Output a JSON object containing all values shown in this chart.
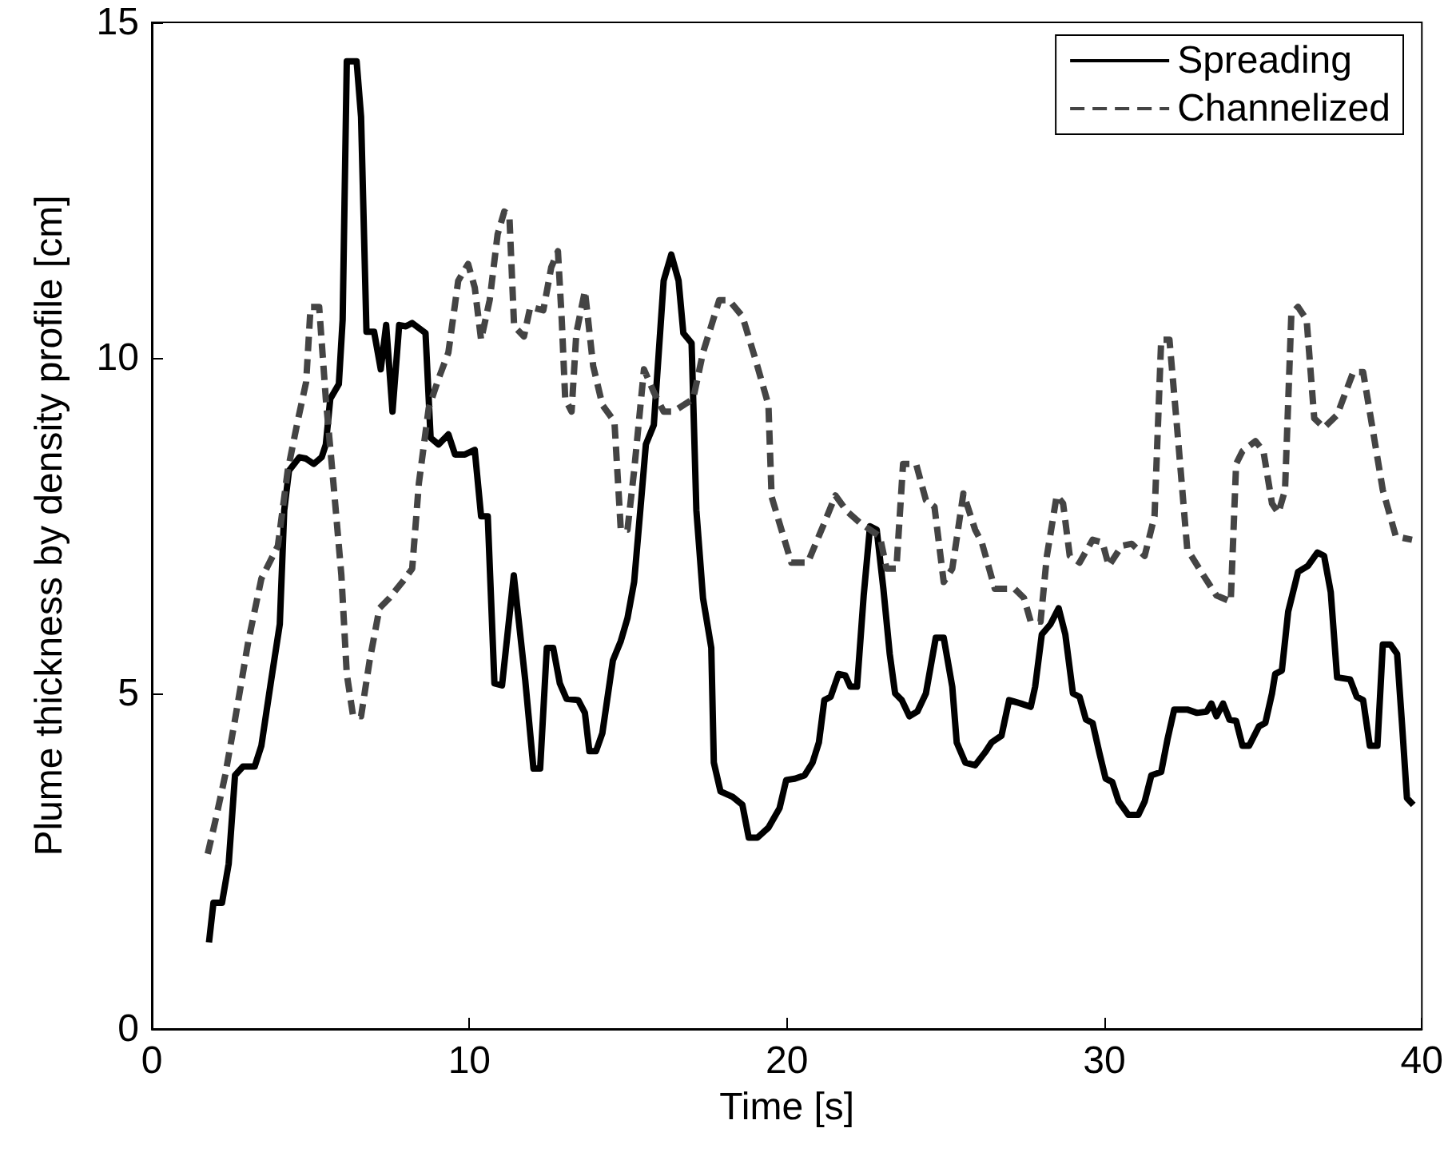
{
  "chart_data": {
    "type": "line",
    "xlabel": "Time [s]",
    "ylabel": "Plume thickness by density profile [cm]",
    "xlim": [
      0,
      40
    ],
    "xticks": [
      0,
      10,
      20,
      30,
      40
    ],
    "ylim": [
      0,
      15
    ],
    "yticks": [
      0,
      5,
      10,
      15
    ],
    "grid": false,
    "legend": "top right",
    "marker": "none",
    "series": [
      {
        "name": "Spreading",
        "color": "#000000",
        "line_style": "solid",
        "x": [
          1.8,
          1.94,
          2.21,
          2.42,
          2.62,
          2.87,
          3.24,
          3.45,
          3.76,
          4.03,
          4.17,
          4.32,
          4.65,
          4.85,
          5.1,
          5.35,
          5.48,
          5.62,
          5.89,
          6.01,
          6.14,
          6.45,
          6.59,
          6.76,
          7.0,
          7.21,
          7.38,
          7.58,
          7.79,
          8.0,
          8.2,
          8.62,
          8.78,
          9.03,
          9.34,
          9.55,
          9.86,
          10.17,
          10.37,
          10.58,
          10.79,
          11.03,
          11.4,
          11.76,
          12.02,
          12.23,
          12.44,
          12.64,
          12.85,
          13.06,
          13.43,
          13.64,
          13.78,
          13.99,
          14.19,
          14.52,
          14.77,
          14.98,
          15.19,
          15.35,
          15.56,
          15.81,
          16.12,
          16.36,
          16.59,
          16.74,
          17.0,
          17.15,
          17.36,
          17.62,
          17.7,
          17.91,
          18.29,
          18.6,
          18.8,
          19.07,
          19.42,
          19.77,
          19.98,
          20.25,
          20.56,
          20.81,
          21.01,
          21.18,
          21.38,
          21.63,
          21.84,
          22.0,
          22.21,
          22.42,
          22.62,
          22.83,
          23.04,
          23.24,
          23.41,
          23.62,
          23.86,
          24.11,
          24.38,
          24.69,
          24.94,
          25.21,
          25.35,
          25.62,
          25.93,
          26.24,
          26.45,
          26.76,
          27.0,
          27.37,
          27.68,
          27.82,
          28.03,
          28.3,
          28.56,
          28.77,
          29.01,
          29.22,
          29.42,
          29.63,
          29.84,
          30.04,
          30.25,
          30.45,
          30.76,
          31.07,
          31.27,
          31.48,
          31.79,
          31.99,
          32.2,
          32.61,
          32.92,
          33.22,
          33.37,
          33.53,
          33.74,
          33.94,
          34.15,
          34.35,
          34.56,
          34.87,
          35.07,
          35.28,
          35.38,
          35.59,
          35.79,
          36.1,
          36.41,
          36.71,
          36.92,
          37.13,
          37.33,
          37.74,
          37.95,
          38.15,
          38.36,
          38.6,
          38.77,
          39.01,
          39.22,
          39.38,
          39.53,
          39.73
        ],
        "values": [
          1.29,
          1.88,
          1.88,
          2.46,
          3.78,
          3.91,
          3.91,
          4.22,
          5.2,
          6.03,
          7.73,
          8.32,
          8.52,
          8.5,
          8.42,
          8.52,
          8.71,
          9.39,
          9.61,
          10.57,
          14.42,
          14.42,
          13.59,
          10.39,
          10.39,
          9.83,
          10.49,
          9.2,
          10.49,
          10.47,
          10.52,
          10.37,
          8.81,
          8.71,
          8.86,
          8.56,
          8.56,
          8.63,
          7.64,
          7.64,
          5.15,
          5.12,
          6.76,
          5.2,
          3.88,
          3.88,
          5.68,
          5.68,
          5.15,
          4.92,
          4.9,
          4.71,
          4.14,
          4.14,
          4.41,
          5.49,
          5.78,
          6.12,
          6.66,
          7.54,
          8.71,
          9.0,
          11.15,
          11.54,
          11.15,
          10.37,
          10.22,
          7.73,
          6.42,
          5.68,
          3.97,
          3.54,
          3.46,
          3.34,
          2.85,
          2.85,
          3.0,
          3.29,
          3.71,
          3.73,
          3.78,
          3.97,
          4.27,
          4.9,
          4.95,
          5.29,
          5.27,
          5.1,
          5.1,
          6.46,
          7.49,
          7.44,
          6.56,
          5.59,
          5.0,
          4.9,
          4.66,
          4.73,
          5.0,
          5.83,
          5.83,
          5.1,
          4.27,
          3.97,
          3.93,
          4.12,
          4.27,
          4.37,
          4.9,
          4.85,
          4.8,
          5.1,
          5.88,
          6.03,
          6.27,
          5.88,
          5.0,
          4.95,
          4.61,
          4.56,
          4.12,
          3.73,
          3.68,
          3.39,
          3.19,
          3.19,
          3.39,
          3.78,
          3.83,
          4.32,
          4.76,
          4.76,
          4.71,
          4.73,
          4.85,
          4.66,
          4.85,
          4.61,
          4.59,
          4.22,
          4.22,
          4.51,
          4.56,
          5.0,
          5.29,
          5.34,
          6.22,
          6.81,
          6.9,
          7.1,
          7.05,
          6.51,
          5.24,
          5.21,
          4.95,
          4.9,
          4.22,
          4.22,
          5.73,
          5.73,
          5.59,
          4.51,
          3.44,
          3.34
        ]
      },
      {
        "name": "Channelized",
        "color": "#444444",
        "line_style": "dashed",
        "x": [
          1.76,
          2.0,
          2.31,
          2.62,
          3.04,
          3.45,
          3.97,
          4.28,
          4.59,
          4.86,
          5.0,
          5.27,
          5.48,
          5.72,
          5.97,
          6.14,
          6.34,
          6.59,
          6.86,
          7.17,
          7.48,
          7.89,
          8.2,
          8.41,
          8.72,
          9.03,
          9.34,
          9.65,
          9.96,
          10.17,
          10.37,
          10.64,
          10.89,
          11.1,
          11.26,
          11.41,
          11.72,
          11.92,
          12.33,
          12.58,
          12.79,
          12.91,
          13.02,
          13.22,
          13.37,
          13.64,
          13.9,
          14.19,
          14.57,
          14.77,
          14.98,
          15.19,
          15.5,
          15.81,
          16.12,
          16.43,
          17.05,
          17.36,
          17.87,
          18.18,
          18.6,
          19.01,
          19.42,
          19.52,
          19.83,
          20.14,
          20.66,
          21.18,
          21.53,
          21.9,
          22.31,
          22.93,
          23.14,
          23.45,
          23.66,
          24.07,
          24.38,
          24.65,
          24.94,
          25.21,
          25.56,
          25.93,
          26.14,
          26.55,
          27.17,
          27.47,
          27.68,
          27.99,
          28.19,
          28.5,
          28.7,
          28.91,
          29.22,
          29.63,
          29.94,
          30.14,
          30.55,
          30.86,
          31.27,
          31.58,
          31.79,
          32.05,
          32.3,
          32.61,
          33.12,
          33.53,
          33.98,
          34.15,
          34.35,
          34.76,
          35.01,
          35.28,
          35.48,
          35.69,
          35.89,
          36.1,
          36.37,
          36.61,
          36.92,
          37.33,
          37.84,
          38.15,
          38.46,
          38.77,
          39.18,
          39.69
        ],
        "values": [
          2.61,
          3.1,
          3.78,
          4.61,
          5.78,
          6.71,
          7.2,
          8.32,
          9.05,
          9.64,
          10.76,
          10.76,
          9.39,
          8.13,
          6.76,
          5.29,
          4.66,
          4.66,
          5.49,
          6.27,
          6.42,
          6.66,
          6.86,
          8.13,
          9.25,
          9.69,
          10.08,
          11.15,
          11.4,
          11.05,
          10.27,
          10.86,
          11.84,
          12.18,
          12.13,
          10.47,
          10.32,
          10.76,
          10.71,
          11.35,
          11.59,
          10.57,
          9.39,
          9.2,
          10.37,
          11.0,
          9.88,
          9.3,
          9.05,
          7.44,
          7.44,
          8.32,
          9.83,
          9.49,
          9.2,
          9.2,
          9.39,
          10.08,
          10.86,
          10.86,
          10.62,
          9.98,
          9.3,
          7.93,
          7.44,
          6.95,
          6.95,
          7.54,
          7.95,
          7.71,
          7.54,
          7.34,
          6.86,
          6.86,
          8.42,
          8.42,
          7.88,
          7.78,
          6.66,
          6.86,
          7.98,
          7.44,
          7.25,
          6.56,
          6.56,
          6.42,
          6.07,
          6.07,
          7.05,
          7.95,
          7.83,
          7.05,
          6.95,
          7.29,
          7.25,
          6.9,
          7.2,
          7.23,
          7.05,
          7.64,
          10.27,
          10.27,
          8.91,
          7.15,
          6.76,
          6.46,
          6.37,
          8.42,
          8.61,
          8.76,
          8.61,
          7.83,
          7.69,
          8.03,
          10.66,
          10.76,
          10.57,
          9.1,
          8.96,
          9.15,
          9.79,
          9.79,
          8.91,
          8.03,
          7.34,
          7.29
        ]
      }
    ]
  }
}
